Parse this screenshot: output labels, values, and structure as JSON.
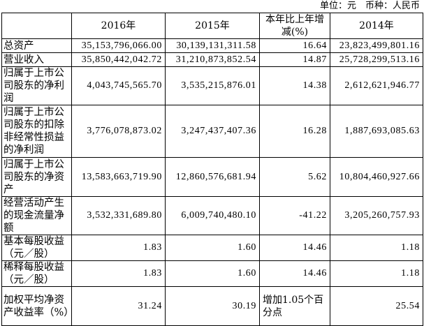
{
  "unit_note": "单位：元　币种：人民币",
  "headers": [
    "",
    "2016年",
    "2015年",
    "本年比上年增减(%)",
    "2014年"
  ],
  "rows": [
    {
      "label": "总资产",
      "v2016": "35,153,796,066.00",
      "v2015": "30,139,131,311.58",
      "change": "16.64",
      "v2014": "23,823,499,801.16"
    },
    {
      "label": "营业收入",
      "v2016": "35,850,442,042.72",
      "v2015": "31,210,873,852.54",
      "change": "14.87",
      "v2014": "25,728,299,513.16"
    },
    {
      "label": "归属于上市公司股东的净利润",
      "v2016": "4,043,745,565.70",
      "v2015": "3,535,215,876.01",
      "change": "14.38",
      "v2014": "2,612,621,946.77"
    },
    {
      "label": "归属于上市公司股东的扣除非经常性损益的净利润",
      "v2016": "3,776,078,873.02",
      "v2015": "3,247,437,407.36",
      "change": "16.28",
      "v2014": "1,887,693,085.63"
    },
    {
      "label": "归属于上市公司股东的净资产",
      "v2016": "13,583,663,719.90",
      "v2015": "12,860,576,681.94",
      "change": "5.62",
      "v2014": "10,804,460,927.66"
    },
    {
      "label": "经营活动产生的现金流量净额",
      "v2016": "3,532,331,689.80",
      "v2015": "6,009,740,480.10",
      "change": "-41.22",
      "v2014": "3,205,260,757.93"
    },
    {
      "label": "基本每股收益（元／股）",
      "v2016": "1.83",
      "v2015": "1.60",
      "change": "14.46",
      "v2014": "1.18"
    },
    {
      "label": "稀释每股收益（元／股）",
      "v2016": "1.83",
      "v2015": "1.60",
      "change": "14.46",
      "v2014": "1.18"
    },
    {
      "label": "加权平均净资产收益率（%）",
      "v2016": "31.24",
      "v2015": "30.19",
      "change": "增加1.05个百分点",
      "v2014": "25.54"
    }
  ]
}
